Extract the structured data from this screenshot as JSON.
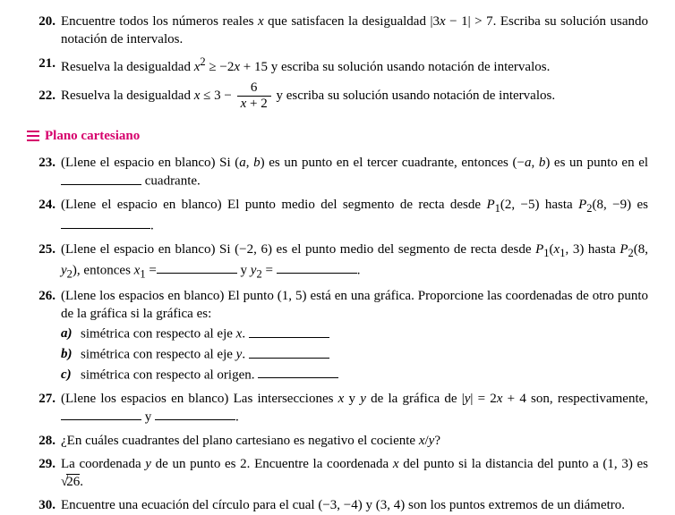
{
  "section": {
    "title": "Plano cartesiano",
    "color": "#d6006c"
  },
  "p20": {
    "num": "20.",
    "text_a": "Encuentre todos los números reales ",
    "x": "x",
    "text_b": " que satisfacen la desigualdad |3",
    "text_c": " − 1| > 7. Escriba su solución usando notación de intervalos."
  },
  "p21": {
    "num": "21.",
    "text_a": "Resuelva la desigualdad ",
    "x": "x",
    "sq": "2",
    "text_b": " ≥ −2",
    "text_c": " + 15 y escriba su solución usando notación de intervalos."
  },
  "p22": {
    "num": "22.",
    "text_a": "Resuelva la desigualdad ",
    "x": "x",
    "text_b": " ≤ 3 − ",
    "frac_top": "6",
    "frac_bot_a": "x",
    "frac_bot_b": " + 2",
    "text_c": " y escriba su solución usando notación de intervalos."
  },
  "p23": {
    "num": "23.",
    "text_a": "(Llene el espacio en blanco) Si (",
    "a": "a",
    "b": "b",
    "text_b": ", ",
    "text_c": ") es un punto en el tercer cuadrante, entonces (−",
    "text_d": ", ",
    "text_e": ") es un punto en el ",
    "text_f": " cuadrante."
  },
  "p24": {
    "num": "24.",
    "text_a": "(Llene el espacio en blanco) El punto medio del segmento de recta desde ",
    "P1": "P",
    "s1": "1",
    "p1c": "(2, −5)",
    "text_b": " hasta ",
    "P2": "P",
    "s2": "2",
    "p2c": "(8, −9)",
    "text_c": " es ",
    "period": "."
  },
  "p25": {
    "num": "25.",
    "text_a": "(Llene el espacio en blanco) Si (−2, 6) es el punto medio del segmento de recta desde ",
    "P1": "P",
    "s1": "1",
    "p1c_a": "(",
    "x": "x",
    "xs": "1",
    "p1c_b": ", 3)",
    "text_b": " hasta ",
    "P2": "P",
    "s2": "2",
    "p2c_a": "(8, ",
    "y": "y",
    "ys": "2",
    "p2c_b": ")",
    "text_c": ", entonces ",
    "eq1_a": "x",
    "eq1_s": "1",
    "eq1_b": " =",
    "joiner": " y ",
    "eq2_a": "y",
    "eq2_s": "2",
    "eq2_b": " = ",
    "period": "."
  },
  "p26": {
    "num": "26.",
    "text_a": "(Llene los espacios en blanco) El punto (1, 5) está en una gráfica. Proporcione las coorde­nadas de otro punto de la gráfica si la gráfica es:",
    "a_label": "a)",
    "a_text": "simétrica con respecto al eje ",
    "a_axis": "x",
    "a_period": ". ",
    "b_label": "b)",
    "b_text": "simétrica con respecto al eje ",
    "b_axis": "y",
    "b_period": ". ",
    "c_label": "c)",
    "c_text": "simétrica con respecto al origen. "
  },
  "p27": {
    "num": "27.",
    "text_a": "(Llene los espacios en blanco) Las intersecciones ",
    "x": "x",
    "y": "y",
    "text_b": " y ",
    "text_c": " de la gráfica de |",
    "text_d": "| = 2",
    "text_e": " + 4 son, respectivamente, ",
    "joiner": " y ",
    "period": "."
  },
  "p28": {
    "num": "28.",
    "text_a": "¿En cuáles cuadrantes del plano cartesiano es negativo el cociente ",
    "x": "x",
    "slash": "/",
    "y": "y",
    "q": "?"
  },
  "p29": {
    "num": "29.",
    "text_a": "La coordenada ",
    "y": "y",
    "text_b": " de un punto es 2. Encuentre la coordenada ",
    "x": "x",
    "text_c": " del punto si la distancia del punto a (1, 3) es ",
    "sqrt": "√",
    "rad": "26",
    "period": "."
  },
  "p30": {
    "num": "30.",
    "text_a": "Encuentre una ecuación del círculo para el cual (−3, −4) y (3, 4) son los puntos extremos de un diámetro."
  }
}
